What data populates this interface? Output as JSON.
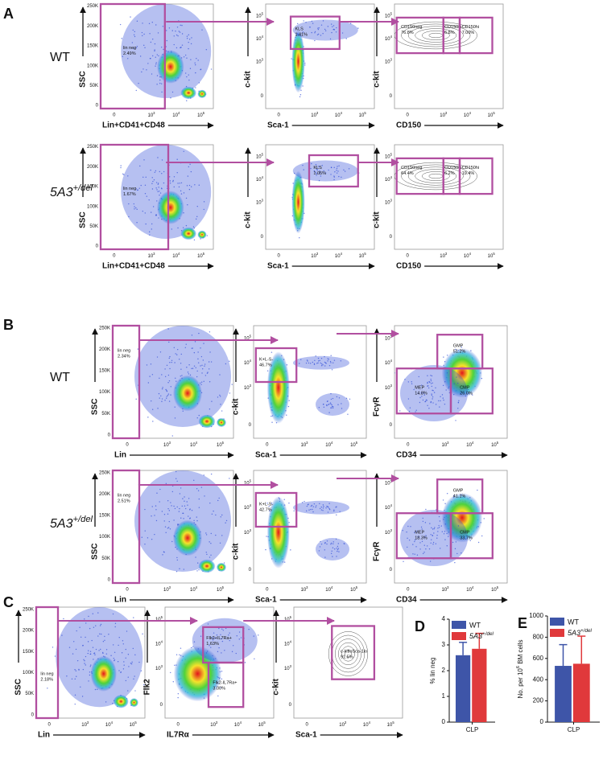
{
  "tick_labels": {
    "ssc": [
      "0",
      "50K",
      "100K",
      "150K",
      "200K",
      "250K"
    ],
    "log": [
      "0",
      {
        "base": "10",
        "sup": "3"
      },
      {
        "base": "10",
        "sup": "4"
      },
      {
        "base": "10",
        "sup": "5"
      }
    ]
  },
  "A": {
    "letter": "A",
    "rows": [
      {
        "label": "WT",
        "plots": [
          {
            "x_label": "Lin+CD41+CD48",
            "y_label": "SSC",
            "gates": [
              {
                "name": "lin neg",
                "pct": "2.49%"
              }
            ]
          },
          {
            "x_label": "Sca-1",
            "y_label": "c-kit",
            "gates": [
              {
                "name": "KLS",
                "pct": "1.41%"
              }
            ]
          },
          {
            "x_label": "CD150",
            "y_label": "c-kit",
            "gates": [
              {
                "name": "CD150neg",
                "pct": "76.8%"
              },
              {
                "name": "CD150lo",
                "pct": "6.8%"
              },
              {
                "name": "CD150hi",
                "pct": "7.00%"
              }
            ]
          }
        ]
      },
      {
        "label": {
          "base": "5A3",
          "sup": "+/del"
        },
        "plots": [
          {
            "x_label": "Lin+CD41+CD48",
            "y_label": "SSC",
            "gates": [
              {
                "name": "lin neg",
                "pct": "1.67%"
              }
            ]
          },
          {
            "x_label": "Sca-1",
            "y_label": "c-kit",
            "gates": [
              {
                "name": "KLS",
                "pct": "1.05%"
              }
            ]
          },
          {
            "x_label": "CD150",
            "y_label": "c-kit",
            "gates": [
              {
                "name": "CD150neg",
                "pct": "64.4%"
              },
              {
                "name": "CD150lo",
                "pct": "6.2%"
              },
              {
                "name": "CD150hi",
                "pct": "19.4%"
              }
            ]
          }
        ]
      }
    ]
  },
  "B": {
    "letter": "B",
    "rows": [
      {
        "label": "WT",
        "plots": [
          {
            "x_label": "Lin",
            "y_label": "SSC",
            "gates": [
              {
                "name": "lin neg",
                "pct": "2.34%"
              }
            ]
          },
          {
            "x_label": "Sca-1",
            "y_label": "c-kit",
            "gates": [
              {
                "name": "K+L-S-",
                "pct": "46.7%"
              }
            ]
          },
          {
            "x_label": "CD34",
            "y_label": "FcγR",
            "gates": [
              {
                "name": "GMP",
                "pct": "51.2%"
              },
              {
                "name": "MEP",
                "pct": "14.8%"
              },
              {
                "name": "CMP",
                "pct": "26.0%"
              }
            ]
          }
        ]
      },
      {
        "label": {
          "base": "5A3",
          "sup": "+/del"
        },
        "plots": [
          {
            "x_label": "Lin",
            "y_label": "SSC",
            "gates": [
              {
                "name": "lin neg",
                "pct": "2.51%"
              }
            ]
          },
          {
            "x_label": "Sca-1",
            "y_label": "c-kit",
            "gates": [
              {
                "name": "K+L-S-",
                "pct": "42.7%"
              }
            ]
          },
          {
            "x_label": "CD34",
            "y_label": "FcγR",
            "gates": [
              {
                "name": "GMP",
                "pct": "41.1%"
              },
              {
                "name": "MEP",
                "pct": "18.3%"
              },
              {
                "name": "CMP",
                "pct": "33.7%"
              }
            ]
          }
        ]
      }
    ]
  },
  "C": {
    "letter": "C",
    "rows": [
      {
        "plots": [
          {
            "x_label": "Lin",
            "y_label": "SSC",
            "gates": [
              {
                "name": "lin neg",
                "pct": "2.18%"
              }
            ]
          },
          {
            "x_label": "IL7Rα",
            "y_label": "Flk2",
            "gates": [
              {
                "name": "Flk2+IL7Ra+",
                "pct": "1.63%"
              },
              {
                "name": "Flk2-IL7Ra+",
                "pct": "3.00%"
              }
            ]
          },
          {
            "x_label": "Sca-1",
            "y_label": "c-kit",
            "gates": [
              {
                "name": "c-kitloSca-1lo",
                "pct": "91.5%"
              }
            ]
          }
        ]
      }
    ]
  },
  "D": {
    "letter": "D",
    "chart": {
      "type": "bar",
      "y_label": "% lin neg",
      "categories": [
        "CLP"
      ],
      "series": [
        {
          "name": "WT",
          "color": "#3e55a8",
          "values": [
            2.6
          ],
          "errors": [
            0.5
          ]
        },
        {
          "name": {
            "base": "5A3",
            "sup": "+/del"
          },
          "color": "#e0393b",
          "values": [
            2.85
          ],
          "errors": [
            0.6
          ]
        }
      ],
      "ylim": [
        0,
        4
      ],
      "yticks": [
        0,
        1,
        2,
        3,
        4
      ]
    }
  },
  "E": {
    "letter": "E",
    "chart": {
      "type": "bar",
      "y_label": {
        "base": "No. per 10",
        "sup": "6",
        "tail": " BM cells"
      },
      "categories": [
        "CLP"
      ],
      "series": [
        {
          "name": "WT",
          "color": "#3e55a8",
          "values": [
            530
          ],
          "errors": [
            200
          ]
        },
        {
          "name": {
            "base": "5A3",
            "sup": "+/del"
          },
          "color": "#e0393b",
          "values": [
            550
          ],
          "errors": [
            260
          ]
        }
      ],
      "ylim": [
        0,
        1000
      ],
      "yticks": [
        0,
        200,
        400,
        600,
        800,
        1000
      ]
    }
  }
}
